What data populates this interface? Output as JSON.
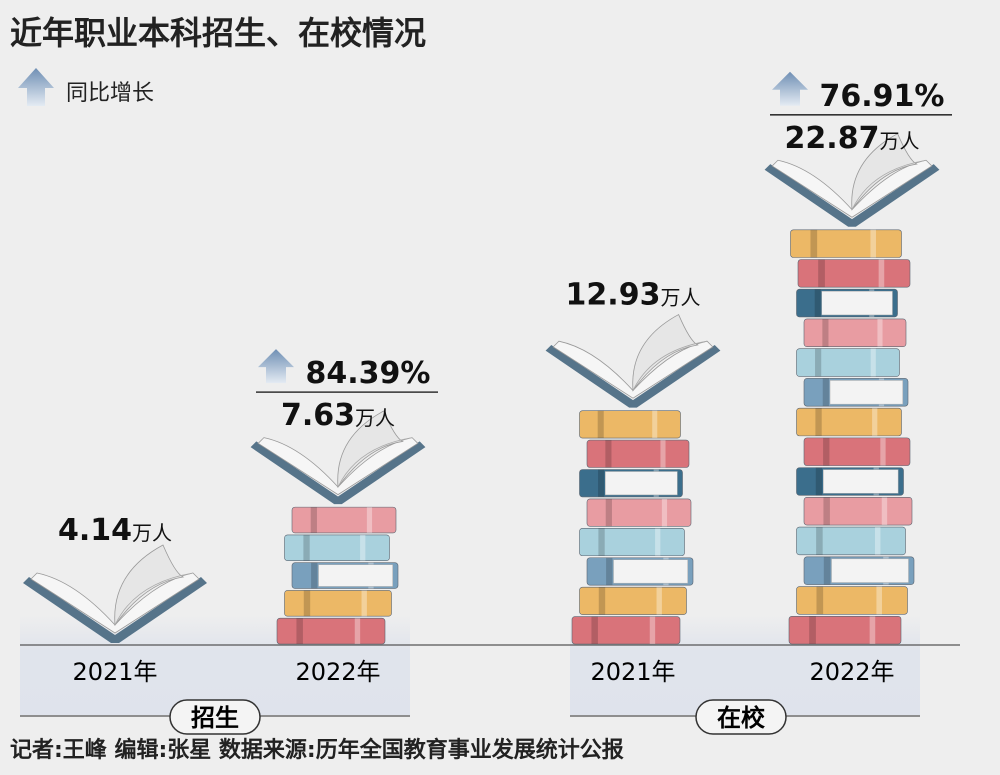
{
  "title": "近年职业本科招生、在校情况",
  "legend": {
    "label": "同比增长",
    "icon": "up-arrow-icon"
  },
  "chart_data": {
    "type": "bar",
    "title": "近年职业本科招生、在校情况",
    "unit": "万人",
    "groups": [
      {
        "name": "招生",
        "bars": [
          {
            "year": "2021年",
            "value": 4.14,
            "value_text": "4.14",
            "growth": null
          },
          {
            "year": "2022年",
            "value": 7.63,
            "value_text": "7.63",
            "growth": "84.39%"
          }
        ]
      },
      {
        "name": "在校",
        "bars": [
          {
            "year": "2021年",
            "value": 12.93,
            "value_text": "12.93",
            "growth": null
          },
          {
            "year": "2022年",
            "value": 22.87,
            "value_text": "22.87",
            "growth": "76.91%"
          }
        ]
      }
    ]
  },
  "footer": "记者:王峰   编辑:张星   数据来源:历年全国教育事业发展统计公报",
  "colors": {
    "background": "#eeeeee",
    "panel": "#dcdfe8",
    "book_cover": "#56748a",
    "book_pages": "#f6f6f6",
    "arrow": "#9fb3cc",
    "spines": [
      "#d9737a",
      "#ecb866",
      "#79a0bd",
      "#a9d1dd",
      "#e89ca2",
      "#3b6e8c"
    ]
  }
}
